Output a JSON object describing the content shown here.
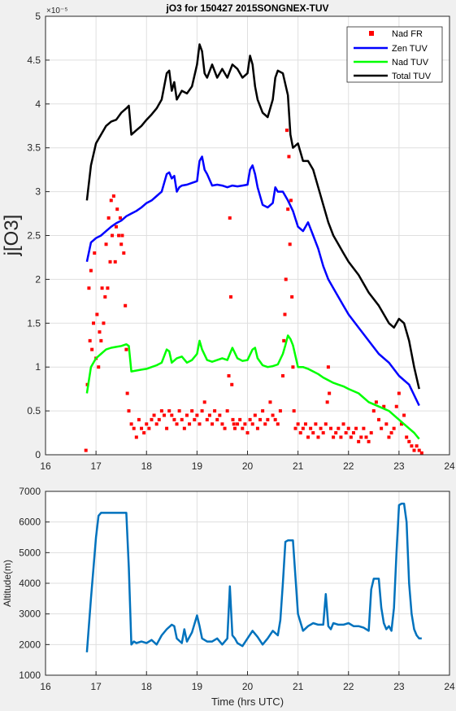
{
  "figure": {
    "background": "#f0f0f0",
    "axes_background": "#ffffff",
    "grid_color": "#dfdfdf"
  },
  "chart_data": [
    {
      "type": "line",
      "title": "jO3 for 150427 2015SONGNEX-TUV",
      "xlabel": "",
      "ylabel": "j[O3]",
      "y_exponent_label": "×10⁻⁵",
      "y_scale_note": "y tick values shown in units of 1e-5",
      "xlim": [
        16,
        24
      ],
      "ylim": [
        0,
        5
      ],
      "xticks": [
        16,
        17,
        18,
        19,
        20,
        21,
        22,
        23,
        24
      ],
      "yticks": [
        0,
        0.5,
        1,
        1.5,
        2,
        2.5,
        3,
        3.5,
        4,
        4.5,
        5
      ],
      "grid": true,
      "legend_position": "top-right",
      "series": [
        {
          "name": "Nad FR",
          "style": "markers",
          "color": "#ff0000",
          "x": [
            16.8,
            16.83,
            16.86,
            16.88,
            16.9,
            16.92,
            16.95,
            16.97,
            17.0,
            17.02,
            17.05,
            17.07,
            17.1,
            17.12,
            17.15,
            17.18,
            17.2,
            17.23,
            17.25,
            17.28,
            17.3,
            17.32,
            17.35,
            17.38,
            17.4,
            17.42,
            17.45,
            17.48,
            17.5,
            17.52,
            17.55,
            17.58,
            17.6,
            17.62,
            17.65,
            17.7,
            17.75,
            17.8,
            17.85,
            17.9,
            17.95,
            18.0,
            18.05,
            18.1,
            18.15,
            18.2,
            18.25,
            18.3,
            18.35,
            18.4,
            18.45,
            18.5,
            18.55,
            18.6,
            18.65,
            18.7,
            18.75,
            18.8,
            18.85,
            18.9,
            18.95,
            19.0,
            19.05,
            19.1,
            19.15,
            19.2,
            19.25,
            19.3,
            19.35,
            19.4,
            19.45,
            19.5,
            19.55,
            19.6,
            19.63,
            19.65,
            19.67,
            19.69,
            19.71,
            19.73,
            19.75,
            19.8,
            19.85,
            19.9,
            19.95,
            20.0,
            20.05,
            20.1,
            20.15,
            20.2,
            20.25,
            20.3,
            20.35,
            20.4,
            20.45,
            20.5,
            20.55,
            20.6,
            20.65,
            20.7,
            20.72,
            20.74,
            20.76,
            20.78,
            20.8,
            20.82,
            20.84,
            20.86,
            20.88,
            20.9,
            20.92,
            20.95,
            21.0,
            21.05,
            21.1,
            21.15,
            21.2,
            21.25,
            21.3,
            21.35,
            21.4,
            21.45,
            21.5,
            21.55,
            21.58,
            21.6,
            21.62,
            21.65,
            21.7,
            21.75,
            21.8,
            21.85,
            21.9,
            21.95,
            22.0,
            22.05,
            22.1,
            22.15,
            22.2,
            22.25,
            22.3,
            22.35,
            22.4,
            22.45,
            22.5,
            22.55,
            22.6,
            22.65,
            22.7,
            22.75,
            22.8,
            22.85,
            22.9,
            22.95,
            23.0,
            23.05,
            23.1,
            23.15,
            23.2,
            23.25,
            23.3,
            23.35,
            23.4,
            23.45
          ],
          "y": [
            0.05,
            0.8,
            1.9,
            1.3,
            2.1,
            1.2,
            1.5,
            2.3,
            1.1,
            1.6,
            1.0,
            1.4,
            1.3,
            1.9,
            1.5,
            1.8,
            2.4,
            1.9,
            2.7,
            2.2,
            2.9,
            2.5,
            2.95,
            2.2,
            2.6,
            2.8,
            2.5,
            2.7,
            2.4,
            2.5,
            2.3,
            1.7,
            1.2,
            0.7,
            0.5,
            0.35,
            0.3,
            0.2,
            0.4,
            0.3,
            0.25,
            0.35,
            0.3,
            0.4,
            0.45,
            0.35,
            0.4,
            0.5,
            0.45,
            0.3,
            0.5,
            0.45,
            0.4,
            0.35,
            0.5,
            0.4,
            0.3,
            0.45,
            0.35,
            0.5,
            0.4,
            0.45,
            0.35,
            0.5,
            0.6,
            0.4,
            0.45,
            0.35,
            0.5,
            0.4,
            0.45,
            0.35,
            0.3,
            0.5,
            0.9,
            2.7,
            1.8,
            0.8,
            0.4,
            0.35,
            0.3,
            0.35,
            0.4,
            0.3,
            0.35,
            0.25,
            0.4,
            0.35,
            0.45,
            0.3,
            0.4,
            0.5,
            0.35,
            0.4,
            0.6,
            0.45,
            0.4,
            0.35,
            0.5,
            0.9,
            1.3,
            1.6,
            2.0,
            3.7,
            2.8,
            3.4,
            2.4,
            2.9,
            1.8,
            1.0,
            0.5,
            0.3,
            0.35,
            0.25,
            0.3,
            0.35,
            0.2,
            0.3,
            0.25,
            0.35,
            0.2,
            0.3,
            0.25,
            0.35,
            0.6,
            1.0,
            0.7,
            0.3,
            0.2,
            0.25,
            0.3,
            0.2,
            0.35,
            0.25,
            0.3,
            0.2,
            0.25,
            0.3,
            0.15,
            0.2,
            0.3,
            0.2,
            0.15,
            0.25,
            0.5,
            0.6,
            0.4,
            0.3,
            0.55,
            0.35,
            0.2,
            0.25,
            0.3,
            0.55,
            0.7,
            0.35,
            0.45,
            0.2,
            0.15,
            0.1,
            0.05,
            0.1,
            0.05,
            0.02
          ]
        },
        {
          "name": "Zen TUV",
          "style": "line",
          "color": "#0000ff",
          "x": [
            16.82,
            16.9,
            17.0,
            17.1,
            17.2,
            17.3,
            17.4,
            17.5,
            17.6,
            17.7,
            17.8,
            17.9,
            18.0,
            18.1,
            18.2,
            18.3,
            18.35,
            18.4,
            18.45,
            18.5,
            18.55,
            18.6,
            18.65,
            18.7,
            18.8,
            18.9,
            19.0,
            19.05,
            19.1,
            19.15,
            19.2,
            19.3,
            19.4,
            19.5,
            19.6,
            19.7,
            19.8,
            19.9,
            20.0,
            20.05,
            20.1,
            20.15,
            20.2,
            20.3,
            20.4,
            20.5,
            20.55,
            20.6,
            20.7,
            20.8,
            20.9,
            21.0,
            21.1,
            21.2,
            21.3,
            21.4,
            21.5,
            21.6,
            21.7,
            21.8,
            21.9,
            22.0,
            22.2,
            22.4,
            22.6,
            22.8,
            23.0,
            23.2,
            23.4
          ],
          "y": [
            2.2,
            2.42,
            2.47,
            2.5,
            2.55,
            2.6,
            2.64,
            2.67,
            2.72,
            2.75,
            2.78,
            2.82,
            2.87,
            2.9,
            2.95,
            3.0,
            3.1,
            3.2,
            3.22,
            3.15,
            3.18,
            3.0,
            3.05,
            3.07,
            3.08,
            3.1,
            3.12,
            3.35,
            3.4,
            3.25,
            3.2,
            3.07,
            3.08,
            3.07,
            3.05,
            3.07,
            3.06,
            3.07,
            3.08,
            3.25,
            3.3,
            3.2,
            3.05,
            2.85,
            2.82,
            2.87,
            3.05,
            3.0,
            3.0,
            2.9,
            2.78,
            2.6,
            2.55,
            2.65,
            2.5,
            2.35,
            2.15,
            2.0,
            1.9,
            1.8,
            1.7,
            1.6,
            1.45,
            1.3,
            1.15,
            1.05,
            0.9,
            0.8,
            0.56
          ]
        },
        {
          "name": "Nad TUV",
          "style": "line",
          "color": "#00ff00",
          "x": [
            16.82,
            16.9,
            17.0,
            17.1,
            17.2,
            17.3,
            17.4,
            17.5,
            17.6,
            17.65,
            17.7,
            17.8,
            17.9,
            18.0,
            18.1,
            18.2,
            18.3,
            18.4,
            18.45,
            18.5,
            18.6,
            18.7,
            18.8,
            18.9,
            19.0,
            19.05,
            19.1,
            19.2,
            19.3,
            19.4,
            19.5,
            19.6,
            19.7,
            19.8,
            19.9,
            20.0,
            20.1,
            20.15,
            20.2,
            20.3,
            20.4,
            20.5,
            20.6,
            20.7,
            20.75,
            20.8,
            20.85,
            20.9,
            21.0,
            21.1,
            21.2,
            21.3,
            21.4,
            21.5,
            21.6,
            21.7,
            21.8,
            21.9,
            22.0,
            22.2,
            22.4,
            22.6,
            22.8,
            23.0,
            23.1,
            23.2,
            23.3,
            23.4
          ],
          "y": [
            0.7,
            1.0,
            1.1,
            1.15,
            1.2,
            1.22,
            1.23,
            1.24,
            1.26,
            1.24,
            0.95,
            0.96,
            0.97,
            0.98,
            1.0,
            1.02,
            1.05,
            1.2,
            1.18,
            1.05,
            1.1,
            1.12,
            1.05,
            1.08,
            1.15,
            1.3,
            1.2,
            1.08,
            1.06,
            1.08,
            1.1,
            1.08,
            1.22,
            1.1,
            1.07,
            1.08,
            1.2,
            1.22,
            1.1,
            1.02,
            1.0,
            1.01,
            1.03,
            1.15,
            1.25,
            1.36,
            1.32,
            1.25,
            1.0,
            1.0,
            0.98,
            0.95,
            0.92,
            0.88,
            0.85,
            0.82,
            0.8,
            0.78,
            0.75,
            0.7,
            0.6,
            0.55,
            0.5,
            0.4,
            0.35,
            0.3,
            0.25,
            0.18
          ]
        },
        {
          "name": "Total TUV",
          "style": "line",
          "color": "#000000",
          "x": [
            16.82,
            16.9,
            17.0,
            17.1,
            17.2,
            17.3,
            17.4,
            17.5,
            17.6,
            17.65,
            17.7,
            17.8,
            17.9,
            18.0,
            18.1,
            18.2,
            18.3,
            18.4,
            18.45,
            18.5,
            18.55,
            18.6,
            18.65,
            18.7,
            18.8,
            18.9,
            19.0,
            19.05,
            19.1,
            19.15,
            19.2,
            19.3,
            19.4,
            19.5,
            19.6,
            19.7,
            19.8,
            19.9,
            20.0,
            20.05,
            20.1,
            20.15,
            20.2,
            20.3,
            20.4,
            20.5,
            20.55,
            20.6,
            20.7,
            20.8,
            20.85,
            20.9,
            21.0,
            21.05,
            21.1,
            21.2,
            21.3,
            21.4,
            21.5,
            21.6,
            21.7,
            21.8,
            21.9,
            22.0,
            22.2,
            22.4,
            22.6,
            22.8,
            22.9,
            23.0,
            23.1,
            23.2,
            23.3,
            23.4
          ],
          "y": [
            2.9,
            3.3,
            3.55,
            3.65,
            3.75,
            3.8,
            3.82,
            3.9,
            3.95,
            3.98,
            3.65,
            3.7,
            3.75,
            3.82,
            3.88,
            3.95,
            4.05,
            4.35,
            4.38,
            4.15,
            4.25,
            4.05,
            4.1,
            4.15,
            4.12,
            4.2,
            4.45,
            4.68,
            4.6,
            4.35,
            4.3,
            4.45,
            4.3,
            4.4,
            4.3,
            4.45,
            4.4,
            4.3,
            4.35,
            4.55,
            4.45,
            4.2,
            4.05,
            3.9,
            3.85,
            4.05,
            4.3,
            4.38,
            4.35,
            4.1,
            3.65,
            3.5,
            3.55,
            3.45,
            3.35,
            3.35,
            3.25,
            3.05,
            2.85,
            2.65,
            2.5,
            2.4,
            2.3,
            2.2,
            2.05,
            1.85,
            1.7,
            1.5,
            1.45,
            1.55,
            1.5,
            1.3,
            1.0,
            0.75
          ]
        }
      ]
    },
    {
      "type": "line",
      "title": "",
      "xlabel": "Time (hrs UTC)",
      "ylabel": "Altitude(m)",
      "xlim": [
        16,
        24
      ],
      "ylim": [
        1000,
        7000
      ],
      "xticks": [
        16,
        17,
        18,
        19,
        20,
        21,
        22,
        23,
        24
      ],
      "yticks": [
        1000,
        2000,
        3000,
        4000,
        5000,
        6000,
        7000
      ],
      "grid": true,
      "series": [
        {
          "style": "line",
          "color": "#0072bd",
          "x": [
            16.82,
            16.9,
            17.0,
            17.05,
            17.1,
            17.2,
            17.4,
            17.6,
            17.65,
            17.7,
            17.75,
            17.8,
            17.9,
            18.0,
            18.1,
            18.2,
            18.3,
            18.4,
            18.5,
            18.55,
            18.6,
            18.7,
            18.75,
            18.8,
            18.9,
            19.0,
            19.05,
            19.1,
            19.2,
            19.3,
            19.4,
            19.5,
            19.6,
            19.65,
            19.7,
            19.75,
            19.8,
            19.9,
            20.0,
            20.1,
            20.2,
            20.3,
            20.4,
            20.5,
            20.6,
            20.65,
            20.7,
            20.75,
            20.8,
            20.9,
            20.95,
            21.0,
            21.1,
            21.2,
            21.3,
            21.4,
            21.5,
            21.55,
            21.6,
            21.65,
            21.7,
            21.8,
            21.9,
            22.0,
            22.1,
            22.2,
            22.3,
            22.4,
            22.45,
            22.5,
            22.55,
            22.6,
            22.65,
            22.7,
            22.75,
            22.8,
            22.85,
            22.9,
            22.95,
            23.0,
            23.05,
            23.1,
            23.15,
            23.2,
            23.25,
            23.3,
            23.35,
            23.4,
            23.45
          ],
          "y": [
            1750,
            3500,
            5500,
            6200,
            6300,
            6300,
            6300,
            6300,
            4500,
            2000,
            2100,
            2050,
            2100,
            2050,
            2150,
            2000,
            2300,
            2500,
            2650,
            2600,
            2200,
            2050,
            2500,
            2100,
            2400,
            2950,
            2600,
            2200,
            2100,
            2100,
            2200,
            2000,
            2200,
            3900,
            2300,
            2200,
            2050,
            1950,
            2200,
            2450,
            2250,
            2000,
            2200,
            2450,
            2300,
            2800,
            4000,
            5350,
            5400,
            5400,
            4200,
            3000,
            2450,
            2600,
            2700,
            2650,
            2650,
            3650,
            2600,
            2500,
            2700,
            2650,
            2650,
            2700,
            2600,
            2600,
            2550,
            2450,
            3800,
            4150,
            4150,
            4150,
            3200,
            2700,
            2500,
            2600,
            2450,
            3200,
            5000,
            6550,
            6600,
            6600,
            6000,
            4000,
            3000,
            2500,
            2300,
            2200,
            2200
          ]
        }
      ]
    }
  ]
}
